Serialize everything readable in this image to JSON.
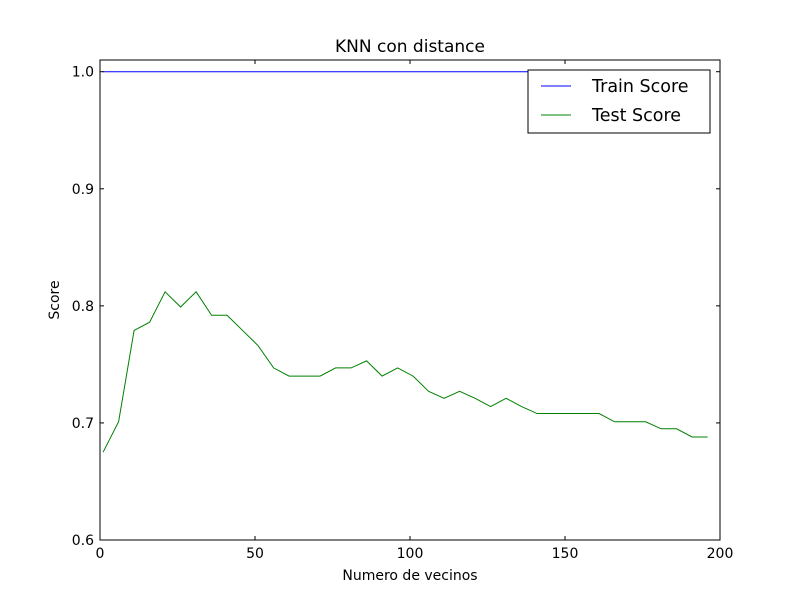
{
  "chart_data": {
    "type": "line",
    "title": "KNN con distance",
    "xlabel": "Numero de vecinos",
    "ylabel": "Score",
    "xlim": [
      0,
      200
    ],
    "ylim": [
      0.6,
      1.01
    ],
    "xticks": [
      0,
      50,
      100,
      150,
      200
    ],
    "yticks": [
      0.6,
      0.7,
      0.8,
      0.9,
      1.0
    ],
    "xtick_labels": [
      "0",
      "50",
      "100",
      "150",
      "200"
    ],
    "ytick_labels": [
      "0.6",
      "0.7",
      "0.8",
      "0.9",
      "1.0"
    ],
    "grid": false,
    "legend_position": "top-right",
    "series": [
      {
        "name": "Train Score",
        "color": "#0000ff",
        "x": [
          1,
          6,
          11,
          16,
          21,
          26,
          31,
          36,
          41,
          46,
          51,
          56,
          61,
          66,
          71,
          76,
          81,
          86,
          91,
          96,
          101,
          106,
          111,
          116,
          121,
          126,
          131,
          136,
          141,
          146,
          151,
          156,
          161,
          166,
          171,
          176,
          181,
          186,
          191,
          196
        ],
        "y": [
          1.0,
          1.0,
          1.0,
          1.0,
          1.0,
          1.0,
          1.0,
          1.0,
          1.0,
          1.0,
          1.0,
          1.0,
          1.0,
          1.0,
          1.0,
          1.0,
          1.0,
          1.0,
          1.0,
          1.0,
          1.0,
          1.0,
          1.0,
          1.0,
          1.0,
          1.0,
          1.0,
          1.0,
          1.0,
          1.0,
          1.0,
          1.0,
          1.0,
          1.0,
          1.0,
          1.0,
          1.0,
          1.0,
          1.0,
          1.0
        ]
      },
      {
        "name": "Test Score",
        "color": "#008000",
        "x": [
          1,
          6,
          11,
          16,
          21,
          26,
          31,
          36,
          41,
          46,
          51,
          56,
          61,
          66,
          71,
          76,
          81,
          86,
          91,
          96,
          101,
          106,
          111,
          116,
          121,
          126,
          131,
          136,
          141,
          146,
          151,
          156,
          161,
          166,
          171,
          176,
          181,
          186,
          191,
          196
        ],
        "y": [
          0.675,
          0.701,
          0.779,
          0.786,
          0.812,
          0.799,
          0.812,
          0.792,
          0.792,
          0.779,
          0.766,
          0.747,
          0.74,
          0.74,
          0.74,
          0.747,
          0.747,
          0.753,
          0.74,
          0.747,
          0.74,
          0.727,
          0.721,
          0.727,
          0.721,
          0.714,
          0.721,
          0.714,
          0.708,
          0.708,
          0.708,
          0.708,
          0.708,
          0.701,
          0.701,
          0.701,
          0.695,
          0.695,
          0.688,
          0.688
        ]
      }
    ]
  }
}
